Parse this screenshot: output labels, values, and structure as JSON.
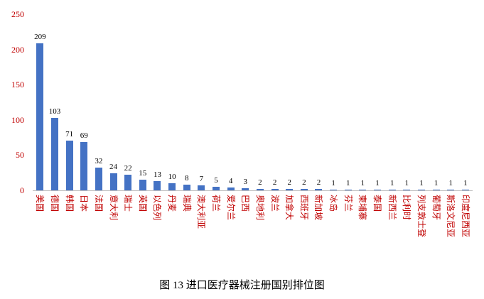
{
  "caption": "图 13 进口医疗器械注册国别排位图",
  "colors": {
    "bar": "#4472C4",
    "axis_label": "#C00000",
    "value_label": "#000000",
    "axis_line": "#BFBFBF"
  },
  "chart_data": {
    "type": "bar",
    "title": "",
    "xlabel": "",
    "ylabel": "",
    "categories": [
      "美国",
      "德国",
      "韩国",
      "日本",
      "法国",
      "意大利",
      "瑞士",
      "英国",
      "以色列",
      "丹麦",
      "瑞典",
      "澳大利亚",
      "荷兰",
      "爱尔兰",
      "巴西",
      "奥地利",
      "波兰",
      "加拿大",
      "西班牙",
      "新加坡",
      "冰岛",
      "芬兰",
      "柬埔寨",
      "泰国",
      "新西兰",
      "比利时",
      "列支敦士登",
      "葡萄牙",
      "斯洛文尼亚",
      "印度尼西亚"
    ],
    "values": [
      209,
      103,
      71,
      69,
      32,
      24,
      22,
      15,
      13,
      10,
      8,
      7,
      5,
      4,
      3,
      2,
      2,
      2,
      2,
      2,
      1,
      1,
      1,
      1,
      1,
      1,
      1,
      1,
      1,
      1
    ],
    "ylim": [
      0,
      250
    ],
    "yticks": [
      0,
      50,
      100,
      150,
      200,
      250
    ],
    "grid": false,
    "legend": "none",
    "data_labels": true,
    "category_label_rotation": 90
  }
}
